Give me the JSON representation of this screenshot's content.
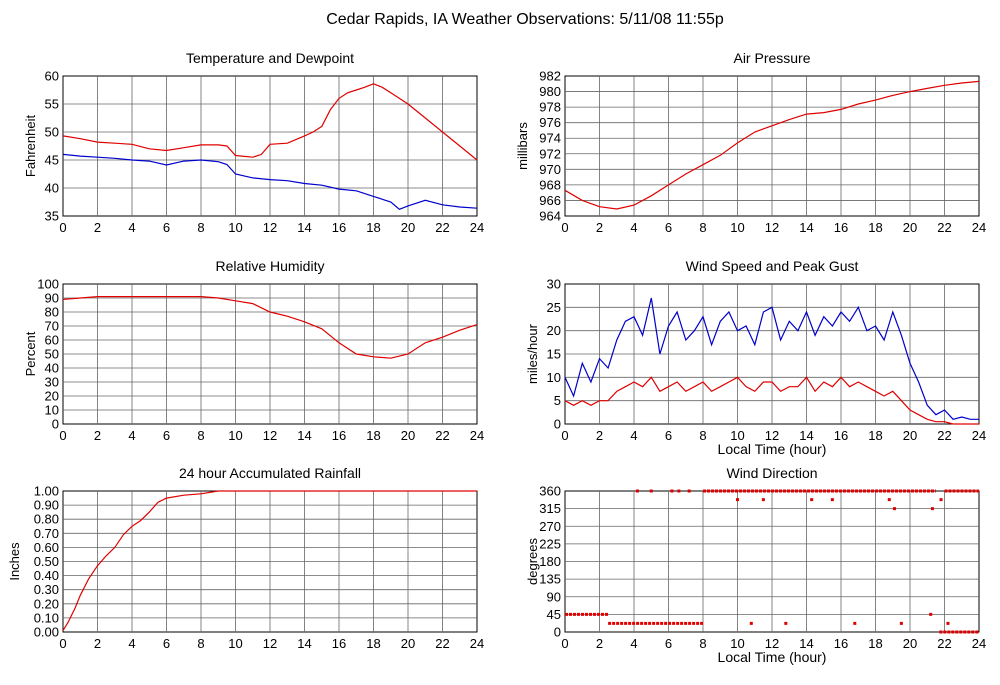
{
  "page": {
    "title": "Cedar Rapids, IA Weather Observations: 5/11/08 11:55p",
    "colors": {
      "red": "#e00000",
      "blue": "#0000cc",
      "grid": "#000000",
      "background": "#ffffff"
    }
  },
  "chart_data": [
    {
      "id": "temp",
      "type": "line",
      "title": "Temperature and Dewpoint",
      "xlabel": "",
      "ylabel": "Fahrenheit",
      "xlim": [
        0,
        24
      ],
      "ylim": [
        35,
        60
      ],
      "xticks": [
        0,
        2,
        4,
        6,
        8,
        10,
        12,
        14,
        16,
        18,
        20,
        22,
        24
      ],
      "yticks": [
        35,
        40,
        45,
        50,
        55,
        60
      ],
      "ytick_labels": [
        "35",
        "40",
        "45",
        "50",
        "55",
        "60"
      ],
      "grid": true,
      "series": [
        {
          "color": "red",
          "x": [
            0,
            1,
            2,
            3,
            4,
            5,
            6,
            7,
            8,
            9,
            9.5,
            10,
            11,
            11.5,
            12,
            13,
            14,
            14.5,
            15,
            15.5,
            16,
            16.5,
            17,
            17.5,
            18,
            18.5,
            19,
            20,
            21,
            22,
            23,
            24
          ],
          "y": [
            49.3,
            48.8,
            48.2,
            48,
            47.8,
            47,
            46.7,
            47.2,
            47.7,
            47.7,
            47.5,
            45.8,
            45.5,
            46,
            47.8,
            48,
            49.3,
            50,
            51,
            54,
            56,
            57,
            57.5,
            58,
            58.6,
            58,
            57,
            55,
            52.5,
            50,
            47.5,
            45
          ]
        },
        {
          "color": "blue",
          "x": [
            0,
            1,
            2,
            3,
            4,
            5,
            6,
            7,
            8,
            9,
            9.5,
            10,
            11,
            12,
            13,
            14,
            15,
            16,
            17,
            18,
            19,
            19.5,
            20,
            21,
            22,
            23,
            24
          ],
          "y": [
            46,
            45.7,
            45.5,
            45.3,
            45,
            44.8,
            44.1,
            44.8,
            45,
            44.7,
            44.2,
            42.5,
            41.8,
            41.5,
            41.3,
            40.8,
            40.5,
            39.8,
            39.5,
            38.5,
            37.5,
            36.2,
            36.8,
            37.8,
            37,
            36.6,
            36.4
          ]
        }
      ]
    },
    {
      "id": "pressure",
      "type": "line",
      "title": "Air Pressure",
      "xlabel": "",
      "ylabel": "millibars",
      "xlim": [
        0,
        24
      ],
      "ylim": [
        964,
        982
      ],
      "xticks": [
        0,
        2,
        4,
        6,
        8,
        10,
        12,
        14,
        16,
        18,
        20,
        22,
        24
      ],
      "yticks": [
        964,
        966,
        968,
        970,
        972,
        974,
        976,
        978,
        980,
        982
      ],
      "ytick_labels": [
        "964",
        "966",
        "968",
        "970",
        "972",
        "974",
        "976",
        "978",
        "980",
        "982"
      ],
      "grid": true,
      "series": [
        {
          "color": "red",
          "x": [
            0,
            1,
            2,
            3,
            4,
            5,
            6,
            7,
            8,
            9,
            10,
            11,
            12,
            13,
            14,
            15,
            16,
            17,
            18,
            19,
            20,
            21,
            22,
            23,
            24
          ],
          "y": [
            967.3,
            966,
            965.2,
            964.9,
            965.4,
            966.6,
            968,
            969.4,
            970.6,
            971.8,
            973.4,
            974.8,
            975.6,
            976.4,
            977.1,
            977.3,
            977.7,
            978.4,
            978.9,
            979.5,
            980,
            980.4,
            980.8,
            981.1,
            981.3
          ]
        }
      ]
    },
    {
      "id": "rh",
      "type": "line",
      "title": "Relative Humidity",
      "xlabel": "",
      "ylabel": "Percent",
      "xlim": [
        0,
        24
      ],
      "ylim": [
        0,
        100
      ],
      "xticks": [
        0,
        2,
        4,
        6,
        8,
        10,
        12,
        14,
        16,
        18,
        20,
        22,
        24
      ],
      "yticks": [
        0,
        10,
        20,
        30,
        40,
        50,
        60,
        70,
        80,
        90,
        100
      ],
      "ytick_labels": [
        "0",
        "10",
        "20",
        "30",
        "40",
        "50",
        "60",
        "70",
        "80",
        "90",
        "100"
      ],
      "grid": true,
      "series": [
        {
          "color": "red",
          "x": [
            0,
            1,
            2,
            4,
            6,
            8,
            9,
            10,
            11,
            12,
            13,
            14,
            15,
            16,
            17,
            18,
            19,
            20,
            21,
            22,
            23,
            24
          ],
          "y": [
            89,
            90,
            91,
            91,
            91,
            91,
            90,
            88,
            86,
            80,
            77,
            73,
            68,
            58,
            50,
            48,
            47,
            50,
            58,
            62,
            67,
            71
          ]
        }
      ]
    },
    {
      "id": "wind",
      "type": "line",
      "title": "Wind Speed and Peak Gust",
      "xlabel": "Local Time (hour)",
      "ylabel": "miles/hour",
      "xlim": [
        0,
        24
      ],
      "ylim": [
        0,
        30
      ],
      "xticks": [
        0,
        2,
        4,
        6,
        8,
        10,
        12,
        14,
        16,
        18,
        20,
        22,
        24
      ],
      "yticks": [
        0,
        5,
        10,
        15,
        20,
        25,
        30
      ],
      "ytick_labels": [
        "0",
        "5",
        "10",
        "15",
        "20",
        "25",
        "30"
      ],
      "grid": true,
      "series": [
        {
          "color": "blue",
          "x": [
            0,
            0.5,
            1,
            1.5,
            2,
            2.5,
            3,
            3.5,
            4,
            4.5,
            5,
            5.5,
            6,
            6.5,
            7,
            7.5,
            8,
            8.5,
            9,
            9.5,
            10,
            10.5,
            11,
            11.5,
            12,
            12.5,
            13,
            13.5,
            14,
            14.5,
            15,
            15.5,
            16,
            16.5,
            17,
            17.5,
            18,
            18.5,
            19,
            19.5,
            20,
            20.5,
            21,
            21.5,
            22,
            22.5,
            23,
            23.5,
            24
          ],
          "y": [
            10,
            6,
            13,
            9,
            14,
            12,
            18,
            22,
            23,
            19,
            27,
            15,
            21,
            24,
            18,
            20,
            23,
            17,
            22,
            24,
            20,
            21,
            17,
            24,
            25,
            18,
            22,
            20,
            24,
            19,
            23,
            21,
            24,
            22,
            25,
            20,
            21,
            18,
            24,
            19,
            13,
            9,
            4,
            2,
            3,
            1,
            1.5,
            1,
            1
          ]
        },
        {
          "color": "red",
          "x": [
            0,
            0.5,
            1,
            1.5,
            2,
            2.5,
            3,
            3.5,
            4,
            4.5,
            5,
            5.5,
            6,
            6.5,
            7,
            7.5,
            8,
            8.5,
            9,
            9.5,
            10,
            10.5,
            11,
            11.5,
            12,
            12.5,
            13,
            13.5,
            14,
            14.5,
            15,
            15.5,
            16,
            16.5,
            17,
            17.5,
            18,
            18.5,
            19,
            19.5,
            20,
            20.5,
            21,
            21.5,
            22,
            22.5,
            23,
            23.5,
            24
          ],
          "y": [
            5,
            4,
            5,
            4,
            5,
            5,
            7,
            8,
            9,
            8,
            10,
            7,
            8,
            9,
            7,
            8,
            9,
            7,
            8,
            9,
            10,
            8,
            7,
            9,
            9,
            7,
            8,
            8,
            10,
            7,
            9,
            8,
            10,
            8,
            9,
            8,
            7,
            6,
            7,
            5,
            3,
            2,
            1,
            0.5,
            0.5,
            0,
            0,
            0,
            0
          ]
        }
      ]
    },
    {
      "id": "rain",
      "type": "line",
      "title": "24 hour Accumulated Rainfall",
      "xlabel": "",
      "ylabel": "Inches",
      "xlim": [
        0,
        24
      ],
      "ylim": [
        0,
        1
      ],
      "xticks": [
        0,
        2,
        4,
        6,
        8,
        10,
        12,
        14,
        16,
        18,
        20,
        22,
        24
      ],
      "yticks": [
        0,
        0.1,
        0.2,
        0.3,
        0.4,
        0.5,
        0.6,
        0.7,
        0.8,
        0.9,
        1.0
      ],
      "ytick_labels": [
        "0.00",
        "0.10",
        "0.20",
        "0.30",
        "0.40",
        "0.50",
        "0.60",
        "0.70",
        "0.80",
        "0.90",
        "1.00"
      ],
      "grid": true,
      "series": [
        {
          "color": "red",
          "x": [
            0,
            0.3,
            0.7,
            1,
            1.5,
            2,
            2.5,
            3,
            3.5,
            4,
            4.5,
            5,
            5.5,
            6,
            7,
            8,
            9,
            10,
            12,
            16,
            20,
            24
          ],
          "y": [
            0.01,
            0.07,
            0.17,
            0.26,
            0.38,
            0.47,
            0.54,
            0.6,
            0.69,
            0.75,
            0.79,
            0.85,
            0.92,
            0.95,
            0.97,
            0.98,
            1.0,
            1.0,
            1.0,
            1.0,
            1.0,
            1.0
          ]
        }
      ]
    },
    {
      "id": "dir",
      "type": "scatter",
      "title": "Wind Direction",
      "xlabel": "Local Time (hour)",
      "ylabel": "degrees",
      "xlim": [
        0,
        24
      ],
      "ylim": [
        0,
        360
      ],
      "xticks": [
        0,
        2,
        4,
        6,
        8,
        10,
        12,
        14,
        16,
        18,
        20,
        22,
        24
      ],
      "yticks": [
        0,
        45,
        90,
        135,
        180,
        225,
        270,
        315,
        360
      ],
      "ytick_labels": [
        "0",
        "45",
        "90",
        "135",
        "180",
        "225",
        "270",
        "315",
        "360"
      ],
      "grid": true,
      "series": [
        {
          "color": "red",
          "segments": [
            {
              "x0": 0,
              "x1": 2.5,
              "y": 45
            },
            {
              "x0": 2.5,
              "x1": 8,
              "y": 22
            },
            {
              "x0": 8,
              "x1": 21.5,
              "y": 360
            },
            {
              "x0": 22,
              "x1": 24,
              "y": 360
            },
            {
              "x0": 21.7,
              "x1": 24,
              "y": 0
            }
          ],
          "x": [
            4.2,
            5,
            6.2,
            6.6,
            7.2,
            10,
            11.5,
            14.3,
            15.5,
            18.8,
            19.1,
            21.3,
            21.8,
            10.8,
            12.8,
            16.8,
            19.5,
            21.2,
            22.2
          ],
          "y": [
            360,
            360,
            360,
            360,
            360,
            338,
            338,
            338,
            338,
            338,
            315,
            315,
            338,
            22,
            22,
            22,
            22,
            45,
            22
          ]
        }
      ]
    }
  ]
}
